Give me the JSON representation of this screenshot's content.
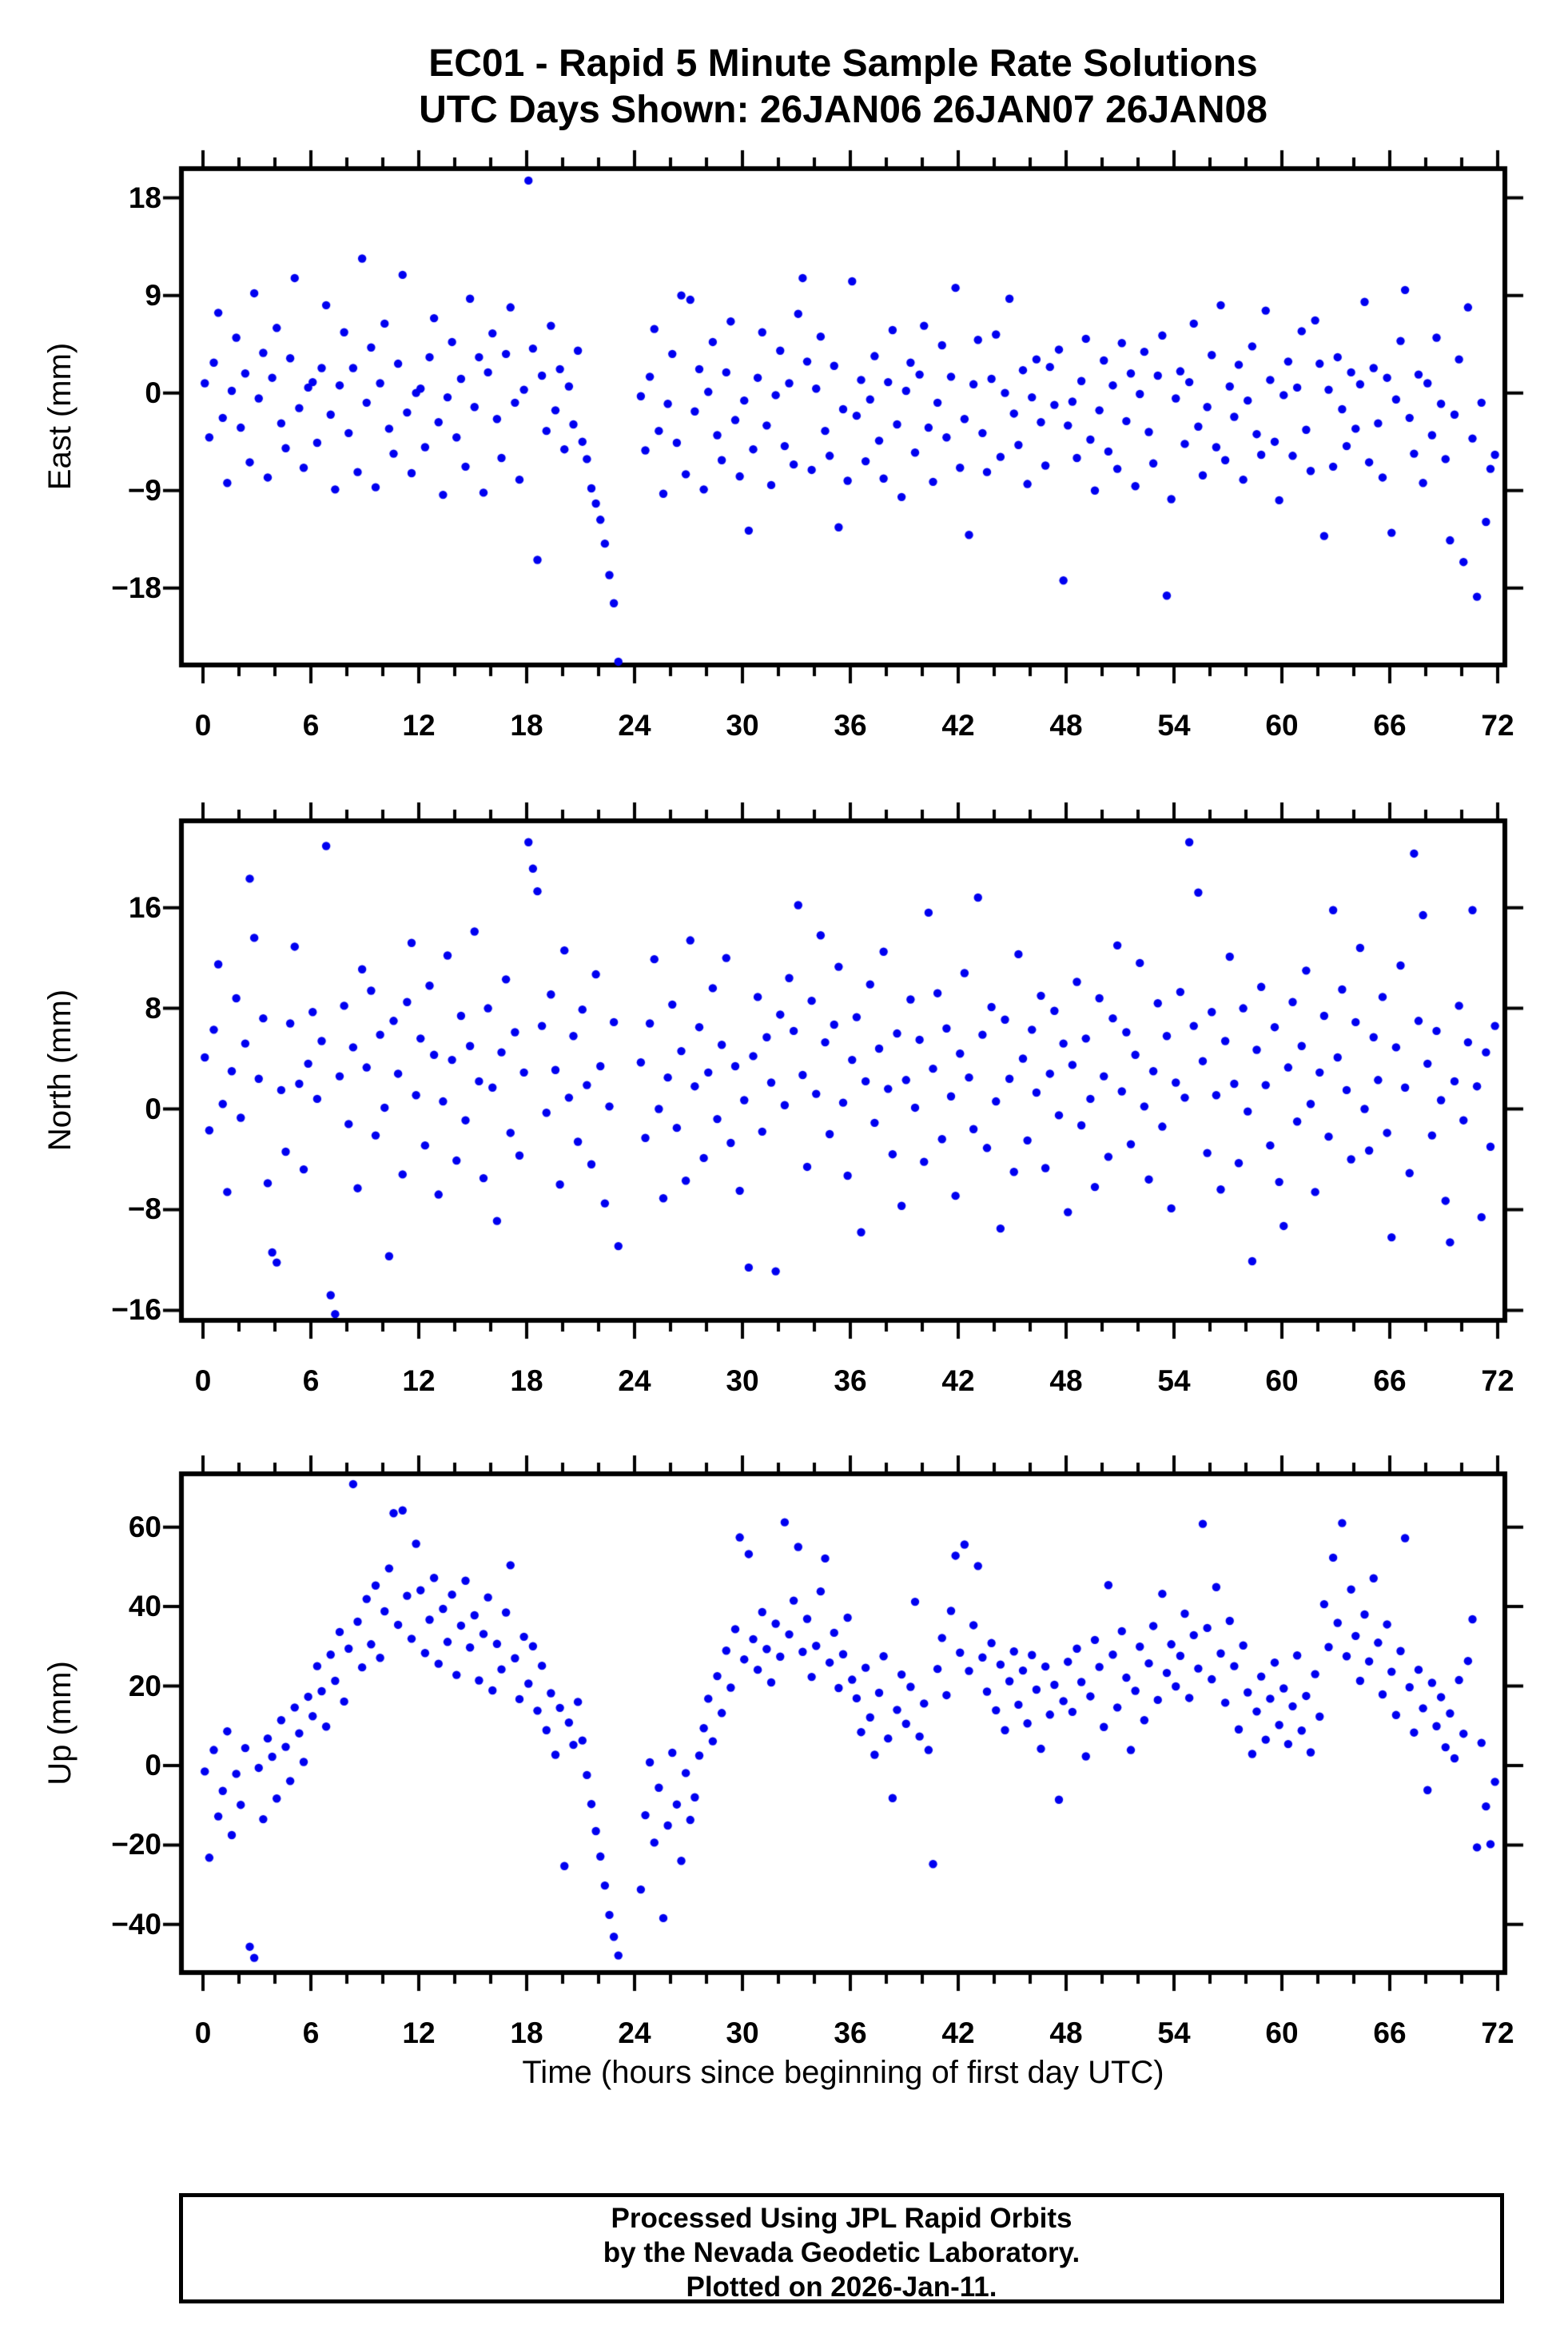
{
  "title": {
    "line1": "EC01 - Rapid 5 Minute Sample Rate Solutions",
    "line2": "UTC Days Shown:  26JAN06 26JAN07 26JAN08"
  },
  "footer": {
    "line1": "Processed Using JPL Rapid Orbits",
    "line2": "by the Nevada Geodetic Laboratory.",
    "line3": "Plotted on 2026-Jan-11."
  },
  "style": {
    "dot_color": "#0000F0",
    "frame_color": "#000000",
    "background": "#ffffff"
  },
  "chart_data": {
    "type": "scatter",
    "xlabel": "Time (hours since beginning of first day UTC)",
    "x_range": [
      -1.2,
      72.4
    ],
    "x_major_ticks": [
      0,
      6,
      12,
      18,
      24,
      30,
      36,
      42,
      48,
      54,
      60,
      66,
      72
    ],
    "x_minor_tick_step": 2,
    "grid": "off",
    "legend": "none",
    "shared_x_hours": [
      0.1,
      0.35,
      0.6,
      0.85,
      1.1,
      1.35,
      1.6,
      1.85,
      2.1,
      2.35,
      2.6,
      2.85,
      3.1,
      3.35,
      3.6,
      3.85,
      4.1,
      4.35,
      4.6,
      4.85,
      5.1,
      5.35,
      5.6,
      5.85,
      6.1,
      6.35,
      6.6,
      6.85,
      7.1,
      7.35,
      7.6,
      7.85,
      8.1,
      8.35,
      8.6,
      8.85,
      9.1,
      9.35,
      9.6,
      9.85,
      10.1,
      10.35,
      10.6,
      10.85,
      11.1,
      11.35,
      11.6,
      11.85,
      12.1,
      12.35,
      12.6,
      12.85,
      13.1,
      13.35,
      13.6,
      13.85,
      14.1,
      14.35,
      14.6,
      14.85,
      15.1,
      15.35,
      15.6,
      15.85,
      16.1,
      16.35,
      16.6,
      16.85,
      17.1,
      17.35,
      17.6,
      17.85,
      18.1,
      18.35,
      18.6,
      18.85,
      19.1,
      19.35,
      19.6,
      19.85,
      20.1,
      20.35,
      20.6,
      20.85,
      21.1,
      21.35,
      21.6,
      21.85,
      22.1,
      22.35,
      22.6,
      22.85,
      23.1,
      24.35,
      24.6,
      24.85,
      25.1,
      25.35,
      25.6,
      25.85,
      26.1,
      26.35,
      26.6,
      26.85,
      27.1,
      27.35,
      27.6,
      27.85,
      28.1,
      28.35,
      28.6,
      28.85,
      29.1,
      29.35,
      29.6,
      29.85,
      30.1,
      30.35,
      30.6,
      30.85,
      31.1,
      31.35,
      31.6,
      31.85,
      32.1,
      32.35,
      32.6,
      32.85,
      33.1,
      33.35,
      33.6,
      33.85,
      34.1,
      34.35,
      34.6,
      34.85,
      35.1,
      35.35,
      35.6,
      35.85,
      36.1,
      36.35,
      36.6,
      36.85,
      37.1,
      37.35,
      37.6,
      37.85,
      38.1,
      38.35,
      38.6,
      38.85,
      39.1,
      39.35,
      39.6,
      39.85,
      40.1,
      40.35,
      40.6,
      40.85,
      41.1,
      41.35,
      41.6,
      41.85,
      42.1,
      42.35,
      42.6,
      42.85,
      43.1,
      43.35,
      43.6,
      43.85,
      44.1,
      44.35,
      44.6,
      44.85,
      45.1,
      45.35,
      45.6,
      45.85,
      46.1,
      46.35,
      46.6,
      46.85,
      47.1,
      47.35,
      47.6,
      47.85,
      48.1,
      48.35,
      48.6,
      48.85,
      49.1,
      49.35,
      49.6,
      49.85,
      50.1,
      50.35,
      50.6,
      50.85,
      51.1,
      51.35,
      51.6,
      51.85,
      52.1,
      52.35,
      52.6,
      52.85,
      53.1,
      53.35,
      53.6,
      53.85,
      54.1,
      54.35,
      54.6,
      54.85,
      55.1,
      55.35,
      55.6,
      55.85,
      56.1,
      56.35,
      56.6,
      56.85,
      57.1,
      57.35,
      57.6,
      57.85,
      58.1,
      58.35,
      58.6,
      58.85,
      59.1,
      59.35,
      59.6,
      59.85,
      60.1,
      60.35,
      60.6,
      60.85,
      61.1,
      61.35,
      61.6,
      61.85,
      62.1,
      62.35,
      62.6,
      62.85,
      63.1,
      63.35,
      63.6,
      63.85,
      64.1,
      64.35,
      64.6,
      64.85,
      65.1,
      65.35,
      65.6,
      65.85,
      66.1,
      66.35,
      66.6,
      66.85,
      67.1,
      67.35,
      67.6,
      67.85,
      68.1,
      68.35,
      68.6,
      68.85,
      69.1,
      69.35,
      69.6,
      69.85,
      70.1,
      70.35,
      70.6,
      70.85,
      71.1,
      71.35,
      71.6,
      71.85
    ],
    "panels": [
      {
        "ylabel": "East (mm)",
        "ylim": [
          -25.1,
          20.7
        ],
        "yticks": [
          -18,
          -9,
          0,
          9,
          18
        ],
        "y": [
          0.9,
          -4.1,
          2.8,
          7.4,
          -2.3,
          -8.3,
          0.2,
          5.1,
          -3.2,
          1.8,
          -6.4,
          9.2,
          -0.5,
          3.7,
          -7.8,
          1.4,
          6.0,
          -2.8,
          -5.1,
          3.2,
          10.6,
          -1.4,
          -6.9,
          0.5,
          1.0,
          -4.6,
          2.3,
          8.1,
          -2.0,
          -8.9,
          0.7,
          5.6,
          -3.7,
          2.3,
          -7.3,
          12.4,
          -0.9,
          4.2,
          -8.7,
          0.9,
          6.4,
          -3.3,
          -5.6,
          2.7,
          10.9,
          -1.8,
          -7.4,
          0.0,
          0.4,
          -5.0,
          3.3,
          6.9,
          -2.7,
          -9.4,
          -0.4,
          4.7,
          -4.1,
          1.3,
          -6.8,
          8.7,
          -1.3,
          3.3,
          -9.2,
          1.9,
          5.5,
          -2.4,
          -6.0,
          3.6,
          7.9,
          -0.9,
          -8.0,
          0.3,
          19.6,
          4.1,
          -15.4,
          1.6,
          -3.5,
          6.2,
          -1.6,
          2.2,
          -5.2,
          0.6,
          -2.9,
          3.9,
          -4.5,
          -6.1,
          -8.8,
          -10.2,
          -11.7,
          -13.9,
          -16.8,
          -19.4,
          -24.8,
          -0.3,
          -5.3,
          1.5,
          5.9,
          -3.5,
          -9.3,
          -1.0,
          3.6,
          -4.6,
          9.0,
          -7.5,
          8.6,
          -1.7,
          2.2,
          -8.9,
          0.1,
          4.7,
          -3.9,
          -6.2,
          1.9,
          6.6,
          -2.5,
          -7.7,
          -0.7,
          -12.7,
          -5.2,
          1.4,
          5.6,
          -3.0,
          -8.5,
          -0.2,
          3.9,
          -4.9,
          0.9,
          -6.6,
          7.3,
          10.6,
          2.9,
          -7.1,
          0.4,
          5.2,
          -3.5,
          -5.8,
          2.5,
          -12.4,
          -1.5,
          -8.1,
          10.3,
          -2.1,
          1.2,
          -6.3,
          -0.6,
          3.4,
          -4.4,
          -7.9,
          1.0,
          5.8,
          -2.9,
          -9.6,
          0.2,
          2.8,
          -5.5,
          1.7,
          6.2,
          -3.2,
          -8.2,
          -0.9,
          4.4,
          -4.1,
          1.5,
          9.7,
          -6.9,
          -2.4,
          -13.1,
          0.8,
          4.9,
          -3.7,
          -7.3,
          1.3,
          5.4,
          -5.9,
          0.0,
          8.7,
          -1.9,
          -4.8,
          2.1,
          -8.4,
          -0.4,
          3.1,
          -2.7,
          -6.7,
          2.4,
          -1.1,
          4.0,
          -17.3,
          -3.0,
          -0.8,
          -6.0,
          1.1,
          5.0,
          -4.3,
          -9.0,
          -1.6,
          3.0,
          -5.4,
          0.7,
          -7.0,
          4.6,
          -2.6,
          1.8,
          -8.6,
          -0.1,
          3.8,
          -3.6,
          -6.5,
          1.6,
          5.3,
          -18.7,
          -9.8,
          -0.5,
          2.0,
          -4.7,
          1.0,
          6.4,
          -3.1,
          -7.6,
          -1.3,
          3.5,
          -5.0,
          8.1,
          -6.2,
          0.6,
          -2.2,
          2.6,
          -8.0,
          -0.7,
          4.3,
          -3.8,
          -5.7,
          7.6,
          1.2,
          -4.5,
          -9.9,
          -0.2,
          2.9,
          -5.8,
          0.5,
          5.7,
          -3.4,
          -7.2,
          6.7,
          2.7,
          -13.2,
          0.3,
          -6.8,
          3.3,
          -1.5,
          -4.9,
          1.9,
          -3.3,
          0.8,
          8.4,
          -6.4,
          2.3,
          -2.8,
          -7.8,
          1.4,
          -12.9,
          -0.6,
          4.8,
          9.5,
          -2.3,
          -5.6,
          1.7,
          -8.3,
          0.9,
          -3.9,
          5.1,
          -1.0,
          -6.1,
          -13.6,
          -2.0,
          3.1,
          -15.6,
          7.9,
          -4.2,
          -18.8,
          -0.9,
          -11.9,
          -7.0,
          -5.7
        ]
      },
      {
        "ylabel": "North (mm)",
        "ylim": [
          -16.8,
          22.9
        ],
        "yticks": [
          -16,
          -8,
          0,
          8,
          16
        ],
        "y": [
          4.1,
          -1.7,
          6.3,
          11.5,
          0.4,
          -6.6,
          3.0,
          8.8,
          -0.7,
          5.2,
          18.3,
          13.6,
          2.4,
          7.2,
          -5.9,
          -11.4,
          -12.2,
          1.5,
          -3.4,
          6.8,
          12.9,
          2.0,
          -4.8,
          3.6,
          7.7,
          0.8,
          5.4,
          20.9,
          -14.8,
          -16.3,
          2.6,
          8.2,
          -1.2,
          4.9,
          -6.3,
          11.1,
          3.3,
          9.4,
          -2.1,
          5.9,
          0.1,
          -11.7,
          7.0,
          2.8,
          -5.2,
          8.5,
          13.2,
          1.1,
          5.6,
          -2.9,
          9.8,
          4.3,
          -6.8,
          0.6,
          12.2,
          3.9,
          -4.1,
          7.4,
          -0.9,
          5.0,
          14.1,
          2.2,
          -5.5,
          8.0,
          1.7,
          -8.9,
          4.5,
          10.3,
          -1.9,
          6.1,
          -3.7,
          2.9,
          21.2,
          19.1,
          17.3,
          6.6,
          -0.3,
          9.1,
          3.1,
          -6.0,
          12.6,
          0.9,
          5.8,
          -2.6,
          7.9,
          1.9,
          -4.4,
          10.7,
          3.4,
          -7.5,
          0.2,
          6.9,
          -10.9,
          3.7,
          -2.3,
          6.8,
          11.9,
          0.0,
          -7.1,
          2.5,
          8.3,
          -1.5,
          4.6,
          -5.7,
          13.4,
          1.8,
          6.5,
          -3.9,
          2.9,
          9.6,
          -0.8,
          5.1,
          12.0,
          -2.7,
          3.4,
          -6.5,
          0.7,
          -12.6,
          4.2,
          8.9,
          -1.8,
          5.7,
          2.1,
          -12.9,
          7.5,
          0.3,
          10.4,
          6.2,
          16.2,
          2.7,
          -4.6,
          8.6,
          1.2,
          13.8,
          5.3,
          -2.0,
          6.7,
          11.3,
          0.5,
          -5.3,
          3.9,
          7.3,
          -9.8,
          2.2,
          9.9,
          -1.1,
          4.8,
          12.5,
          1.6,
          -3.6,
          6.0,
          -7.7,
          2.3,
          8.7,
          0.1,
          5.5,
          -4.2,
          15.6,
          3.2,
          9.2,
          -2.4,
          6.4,
          1.0,
          -6.9,
          4.4,
          10.8,
          2.5,
          -1.6,
          16.8,
          5.9,
          -3.1,
          8.1,
          0.6,
          -9.5,
          7.1,
          2.4,
          -5.0,
          12.3,
          4.0,
          -2.5,
          6.3,
          1.3,
          9.0,
          -4.7,
          2.8,
          7.8,
          -0.5,
          5.2,
          -8.2,
          3.5,
          10.1,
          -1.3,
          5.6,
          0.8,
          -6.2,
          8.8,
          2.6,
          -3.8,
          7.2,
          13.0,
          1.4,
          6.1,
          -2.8,
          4.3,
          11.6,
          0.2,
          -5.6,
          3.0,
          8.4,
          -1.4,
          5.8,
          -7.9,
          2.1,
          9.3,
          0.9,
          21.2,
          6.6,
          17.2,
          3.8,
          -3.5,
          7.7,
          1.1,
          -6.4,
          5.4,
          12.1,
          2.0,
          -4.3,
          8.0,
          -0.2,
          -12.1,
          4.7,
          9.7,
          1.9,
          -2.9,
          6.5,
          -5.8,
          -9.3,
          3.3,
          8.5,
          -1.0,
          5.0,
          11.0,
          0.4,
          -6.6,
          2.9,
          7.4,
          -2.2,
          15.8,
          4.1,
          9.5,
          1.5,
          -4.0,
          6.9,
          12.8,
          0.0,
          -3.3,
          5.7,
          2.3,
          8.9,
          -1.9,
          -10.2,
          4.9,
          11.4,
          1.7,
          -5.1,
          20.3,
          7.0,
          15.4,
          3.6,
          -2.1,
          6.2,
          0.7,
          -7.3,
          -10.6,
          2.2,
          8.2,
          -0.9,
          5.3,
          15.8,
          1.8,
          -8.6,
          4.5,
          -3.0,
          6.6
        ]
      },
      {
        "ylabel": "Up (mm)",
        "ylim": [
          -52.1,
          73.4
        ],
        "yticks": [
          -40,
          -20,
          0,
          20,
          40,
          60
        ],
        "y": [
          -1.5,
          -23.2,
          3.9,
          -12.8,
          -6.4,
          8.6,
          -17.5,
          -2.1,
          -9.9,
          4.4,
          -45.6,
          -48.4,
          -0.6,
          -13.5,
          6.8,
          2.2,
          -8.3,
          11.4,
          4.7,
          -3.9,
          14.6,
          8.1,
          0.9,
          17.3,
          12.4,
          25.0,
          18.7,
          9.8,
          27.9,
          21.3,
          33.6,
          16.1,
          29.4,
          70.8,
          36.2,
          24.7,
          41.9,
          30.5,
          45.3,
          27.1,
          38.8,
          49.6,
          63.5,
          35.4,
          64.2,
          42.7,
          31.9,
          55.8,
          44.1,
          28.3,
          36.7,
          47.2,
          25.6,
          39.4,
          31.1,
          43.0,
          22.8,
          35.2,
          46.5,
          29.7,
          37.8,
          21.4,
          33.1,
          42.3,
          18.9,
          30.6,
          24.2,
          38.5,
          50.4,
          27.0,
          16.7,
          32.4,
          20.6,
          30.0,
          13.8,
          25.1,
          8.9,
          18.2,
          2.7,
          14.5,
          -25.3,
          10.8,
          5.2,
          16.0,
          6.3,
          -2.4,
          -9.7,
          -16.5,
          -22.9,
          -30.2,
          -37.6,
          -43.1,
          -47.8,
          -31.2,
          -12.5,
          0.8,
          -19.4,
          -5.6,
          -38.4,
          -15.1,
          3.2,
          -9.8,
          -24.0,
          -1.9,
          -13.7,
          -8.0,
          2.5,
          9.4,
          16.8,
          6.1,
          22.5,
          13.2,
          28.9,
          19.6,
          34.3,
          57.4,
          26.7,
          53.2,
          31.8,
          24.1,
          38.6,
          29.3,
          20.9,
          35.7,
          27.4,
          61.2,
          33.0,
          41.5,
          55.0,
          28.6,
          36.9,
          22.3,
          30.1,
          43.8,
          52.1,
          25.9,
          33.4,
          19.5,
          28.0,
          37.2,
          21.6,
          16.9,
          8.4,
          24.6,
          12.1,
          2.7,
          18.3,
          27.5,
          6.8,
          -8.2,
          14.0,
          22.9,
          10.5,
          19.8,
          41.2,
          7.3,
          15.6,
          3.9,
          -24.8,
          24.3,
          32.1,
          17.7,
          38.9,
          52.8,
          28.4,
          55.6,
          23.8,
          35.3,
          50.2,
          27.2,
          18.6,
          30.8,
          13.9,
          25.4,
          8.9,
          21.2,
          28.7,
          15.3,
          23.9,
          10.6,
          27.8,
          19.1,
          4.2,
          24.9,
          12.8,
          20.3,
          -8.6,
          16.2,
          26.1,
          13.5,
          29.4,
          21.0,
          2.3,
          17.4,
          31.6,
          24.8,
          9.7,
          45.4,
          27.9,
          14.6,
          33.8,
          22.1,
          3.9,
          18.8,
          29.9,
          11.4,
          25.7,
          35.1,
          16.5,
          43.2,
          23.3,
          30.5,
          19.9,
          27.6,
          38.2,
          17.0,
          32.8,
          24.4,
          60.8,
          34.6,
          21.7,
          44.9,
          28.2,
          15.8,
          36.4,
          25.0,
          9.1,
          30.2,
          18.4,
          2.9,
          13.6,
          22.4,
          6.5,
          16.8,
          25.9,
          10.2,
          19.4,
          5.4,
          14.9,
          27.7,
          8.8,
          17.5,
          3.3,
          23.0,
          12.3,
          40.6,
          29.8,
          52.3,
          35.9,
          61.0,
          27.5,
          44.3,
          32.6,
          21.3,
          38.0,
          26.2,
          47.1,
          30.9,
          17.9,
          35.5,
          23.6,
          12.7,
          28.8,
          57.2,
          19.7,
          8.3,
          24.1,
          14.4,
          -6.2,
          20.8,
          9.9,
          17.2,
          4.6,
          13.1,
          1.8,
          21.5,
          8.0,
          26.3,
          36.8,
          -20.6,
          5.7,
          -10.3,
          -19.8,
          -4.1
        ]
      }
    ]
  }
}
